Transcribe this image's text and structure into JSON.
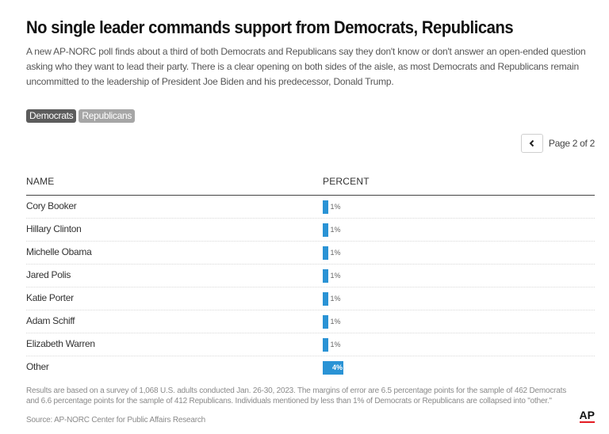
{
  "title": "No single leader commands support from Democrats, Republicans",
  "subtitle": "A new AP-NORC poll finds about a third of both Democrats and Republicans say they don't know or don't answer an open-ended question asking who they want to lead their party. There is a clear opening on both sides of the aisle, as most Democrats and Republicans remain uncommitted to the leadership of President Joe Biden and his predecessor, Donald Trump.",
  "toggle": {
    "democrats": "Democrats",
    "republicans": "Republicans",
    "active": "Democrats"
  },
  "pager": {
    "text": "Page 2 of 2",
    "prev_icon": "chevron-left-icon"
  },
  "table": {
    "col_name": "NAME",
    "col_percent": "PERCENT"
  },
  "colors": {
    "bar": "#2a93d5",
    "active_toggle": "#5c5c5c",
    "inactive_toggle": "#a6a6a6",
    "logo_underline": "#e31b23"
  },
  "chart_data": {
    "type": "bar",
    "orientation": "horizontal",
    "categories": [
      "Cory Booker",
      "Hillary Clinton",
      "Michelle Obama",
      "Jared Polis",
      "Katie Porter",
      "Adam Schiff",
      "Elizabeth Warren",
      "Other"
    ],
    "values": [
      1,
      1,
      1,
      1,
      1,
      1,
      1,
      4
    ],
    "labels": [
      "1%",
      "1%",
      "1%",
      "1%",
      "1%",
      "1%",
      "1%",
      "4%"
    ],
    "xlim": [
      0,
      100
    ]
  },
  "notes": "Results are based on a survey of 1,068 U.S. adults conducted Jan. 26-30, 2023. The margins of error are 6.5 percentage points for the sample of 462 Democrats and 6.6 percentage points for the sample of 412 Republicans. Individuals mentioned by less than 1% of Democrats or Republicans are collapsed into \"other.\"",
  "source": "Source: AP-NORC Center for Public Affairs Research",
  "logo": "AP"
}
